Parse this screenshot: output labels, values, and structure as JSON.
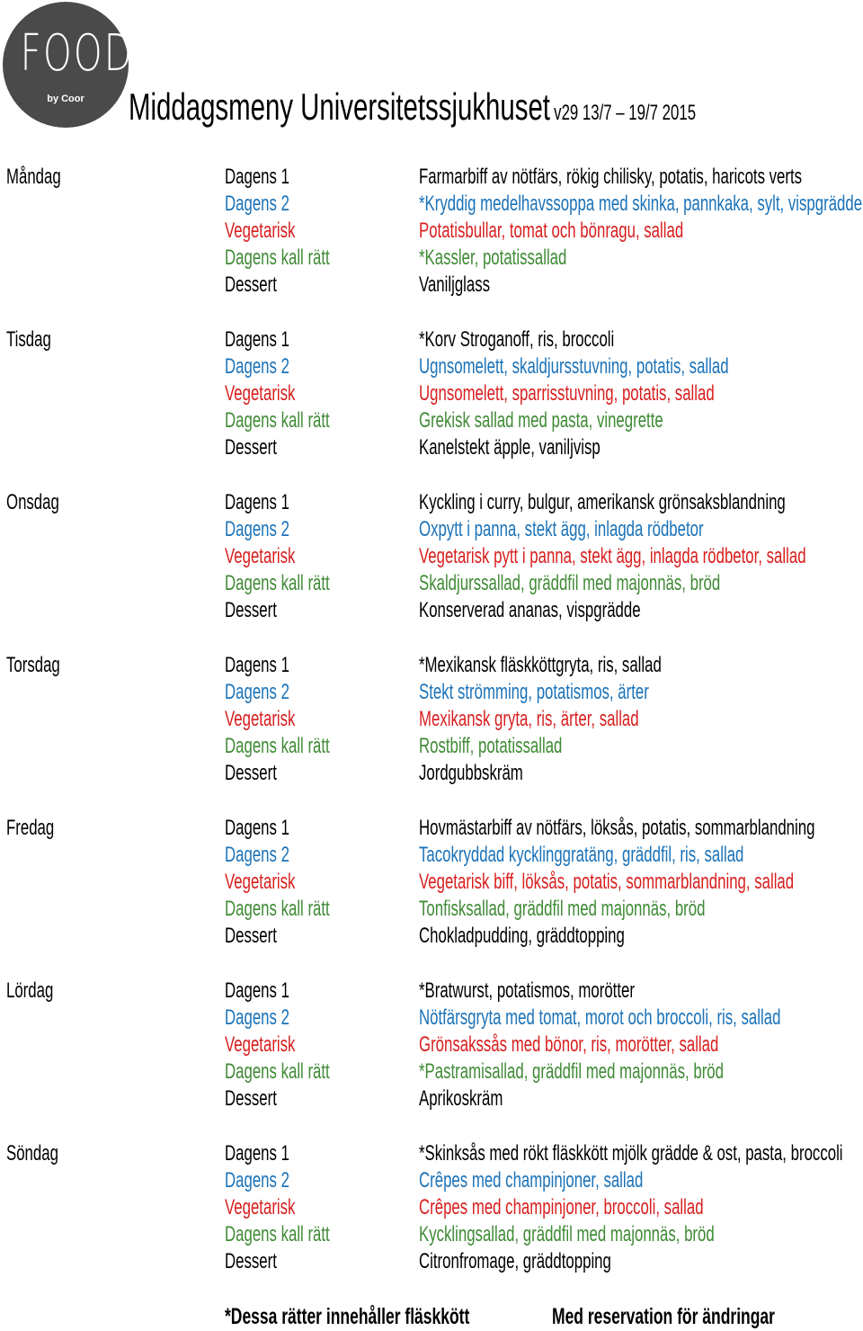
{
  "logo": {
    "word": "FOOD",
    "sub": "by Coor"
  },
  "title": {
    "main": "Middagsmeny Universitetssjukhuset",
    "week": "v29 13/7 – 19/7 2015"
  },
  "colors": {
    "dagens1": "#000000",
    "dagens2": "#1a72b8",
    "vegetarisk": "#d81e1e",
    "kall": "#3f8a35",
    "dessert": "#000000"
  },
  "categories": [
    "Dagens 1",
    "Dagens 2",
    "Vegetarisk",
    "Dagens kall rätt",
    "Dessert"
  ],
  "days": [
    {
      "name": "Måndag",
      "dishes": [
        "Farmarbiff av nötfärs, rökig chilisky, potatis, haricots verts",
        "*Kryddig medelhavssoppa med skinka, pannkaka, sylt, vispgrädde",
        "Potatisbullar, tomat och bönragu, sallad",
        "*Kassler, potatissallad",
        "Vaniljglass"
      ]
    },
    {
      "name": "Tisdag",
      "dishes": [
        "*Korv Stroganoff, ris, broccoli",
        "Ugnsomelett, skaldjursstuvning, potatis, sallad",
        "Ugnsomelett, sparrisstuvning, potatis, sallad",
        "Grekisk sallad med pasta, vinegrette",
        "Kanelstekt äpple, vaniljvisp"
      ]
    },
    {
      "name": "Onsdag",
      "dishes": [
        "Kyckling i curry, bulgur, amerikansk grönsaksblandning",
        "Oxpytt i panna, stekt ägg, inlagda rödbetor",
        "Vegetarisk pytt i panna, stekt ägg, inlagda rödbetor, sallad",
        "Skaldjurssallad, gräddfil med majonnäs, bröd",
        "Konserverad ananas, vispgrädde"
      ]
    },
    {
      "name": "Torsdag",
      "dishes": [
        "*Mexikansk fläskköttgryta, ris, sallad",
        "Stekt strömming, potatismos, ärter",
        "Mexikansk gryta, ris, ärter, sallad",
        "Rostbiff, potatissallad",
        "Jordgubbskräm"
      ]
    },
    {
      "name": "Fredag",
      "dishes": [
        "Hovmästarbiff av nötfärs, löksås, potatis, sommarblandning",
        "Tacokryddad kycklinggratäng, gräddfil, ris, sallad",
        "Vegetarisk biff, löksås, potatis, sommarblandning, sallad",
        "Tonfisksallad, gräddfil med majonnäs, bröd",
        "Chokladpudding, gräddtopping"
      ]
    },
    {
      "name": "Lördag",
      "dishes": [
        "*Bratwurst, potatismos, morötter",
        "Nötfärsgryta med tomat, morot och broccoli, ris, sallad",
        "Grönsakssås med bönor, ris, morötter, sallad",
        "*Pastramisallad, gräddfil med majonnäs, bröd",
        "Aprikoskräm"
      ]
    },
    {
      "name": "Söndag",
      "dishes": [
        "*Skinksås med rökt fläskkött mjölk grädde & ost, pasta, broccoli",
        "Crêpes med champinjoner, sallad",
        "Crêpes med champinjoner, broccoli, sallad",
        "Kycklingsallad, gräddfil med majonnäs, bröd",
        "Citronfromage, gräddtopping"
      ]
    }
  ],
  "footer": {
    "note": "*Dessa rätter innehåller fläskkött",
    "reservation": "Med reservation för ändringar"
  }
}
